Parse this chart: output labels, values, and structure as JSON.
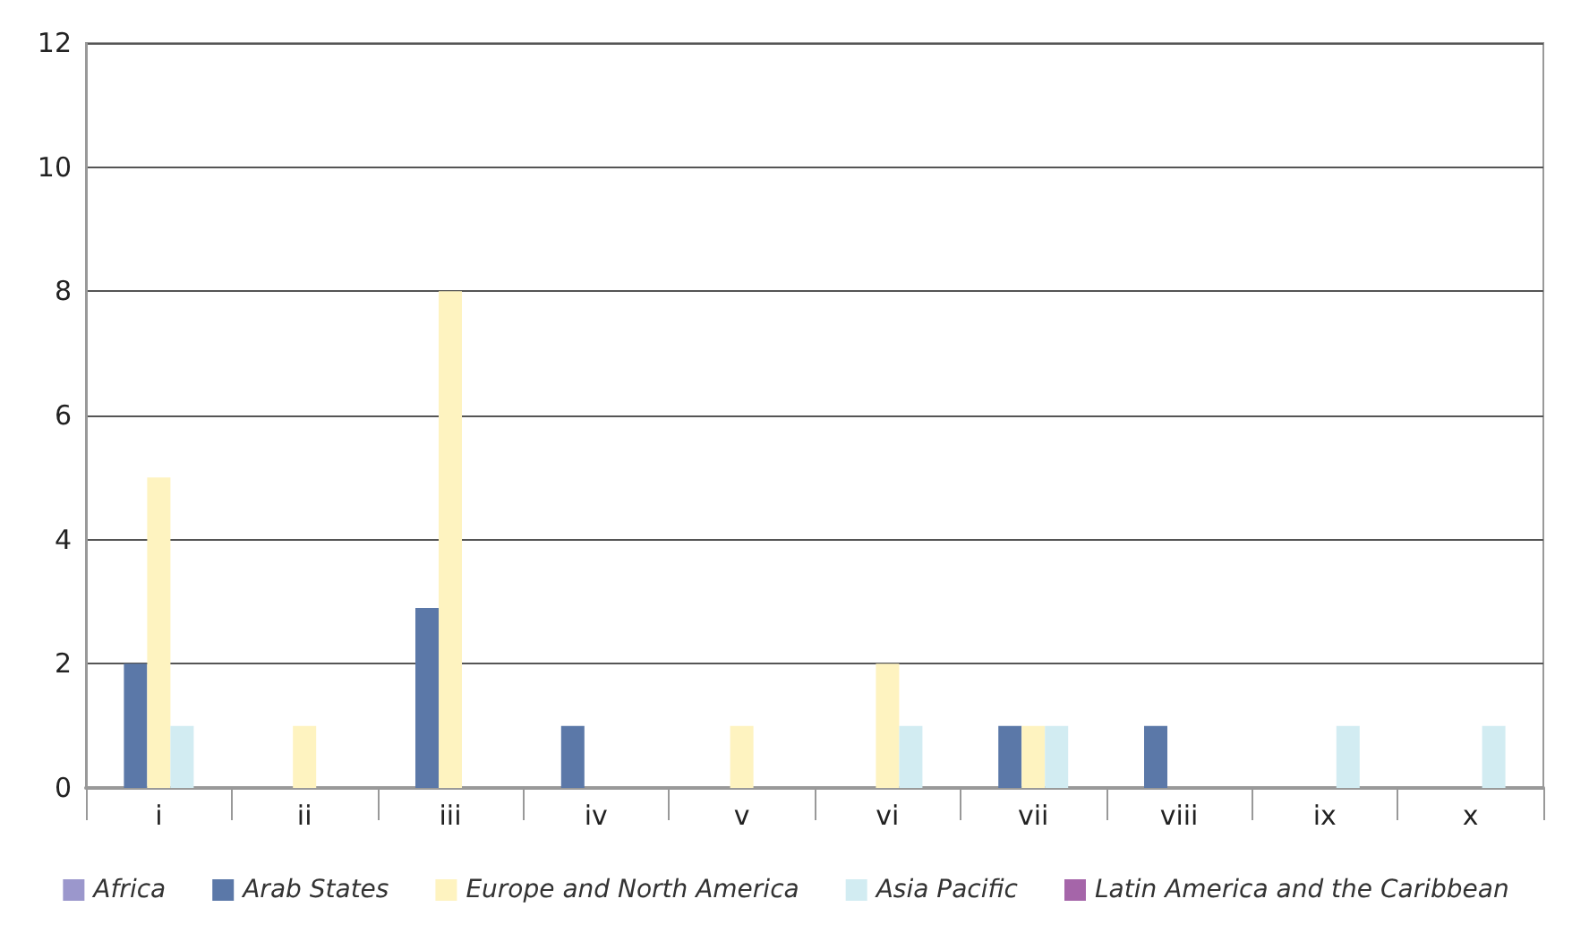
{
  "chart_data": {
    "type": "bar",
    "categories": [
      "i",
      "ii",
      "iii",
      "iv",
      "v",
      "vi",
      "vii",
      "viii",
      "ix",
      "x"
    ],
    "series": [
      {
        "name": "Africa",
        "color": "#9b97cc",
        "values": [
          0,
          0,
          0,
          0,
          0,
          0,
          0,
          0,
          0,
          0
        ]
      },
      {
        "name": "Arab States",
        "color": "#5b78a8",
        "values": [
          2,
          0,
          2.9,
          1,
          0,
          0,
          1,
          1,
          0,
          0
        ]
      },
      {
        "name": "Europe and North America",
        "color": "#fef3c0",
        "values": [
          5,
          1,
          8,
          0,
          1,
          2,
          1,
          0,
          0,
          0
        ]
      },
      {
        "name": "Asia Pacific",
        "color": "#d2ecf2",
        "values": [
          1,
          0,
          0,
          0,
          0,
          1,
          1,
          0,
          1,
          1
        ]
      },
      {
        "name": "Latin America and the Caribbean",
        "color": "#a565a9",
        "values": [
          0,
          0,
          0,
          0,
          0,
          0,
          0,
          0,
          0,
          0
        ]
      }
    ],
    "ylim": [
      0,
      12
    ],
    "yticks": [
      0,
      2,
      4,
      6,
      8,
      10,
      12
    ],
    "grid": "y",
    "legend": "bottom"
  }
}
